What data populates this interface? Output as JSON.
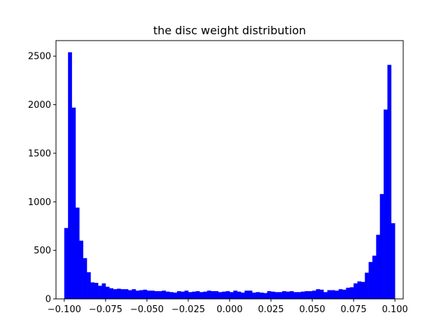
{
  "chart_data": {
    "type": "bar",
    "title": "the disc weight distribution",
    "xlabel": "",
    "ylabel": "",
    "bar_color": "#0000ff",
    "xlim": [
      -0.105,
      0.105
    ],
    "ylim": [
      0,
      2660
    ],
    "xticks": [
      -0.1,
      -0.075,
      -0.05,
      -0.025,
      0.0,
      0.025,
      0.05,
      0.075,
      0.1
    ],
    "xtick_labels": [
      "−0.100",
      "−0.075",
      "−0.050",
      "−0.025",
      "0.000",
      "0.025",
      "0.050",
      "0.075",
      "0.100"
    ],
    "yticks": [
      0,
      500,
      1000,
      1500,
      2000,
      2500
    ],
    "ytick_labels": [
      "0",
      "500",
      "1000",
      "1500",
      "2000",
      "2500"
    ],
    "bin_range": [
      -0.1,
      0.1
    ],
    "values": [
      730,
      2540,
      1970,
      940,
      600,
      420,
      275,
      170,
      165,
      135,
      160,
      125,
      110,
      100,
      105,
      100,
      100,
      90,
      100,
      85,
      90,
      95,
      85,
      85,
      80,
      80,
      85,
      75,
      70,
      65,
      80,
      75,
      85,
      70,
      75,
      80,
      70,
      75,
      85,
      80,
      80,
      70,
      75,
      80,
      70,
      85,
      75,
      65,
      85,
      85,
      65,
      70,
      65,
      60,
      80,
      75,
      70,
      70,
      80,
      75,
      80,
      70,
      70,
      75,
      80,
      80,
      85,
      100,
      95,
      70,
      90,
      90,
      85,
      100,
      95,
      115,
      120,
      160,
      180,
      175,
      270,
      380,
      445,
      660,
      1080,
      1950,
      2410,
      780
    ]
  }
}
